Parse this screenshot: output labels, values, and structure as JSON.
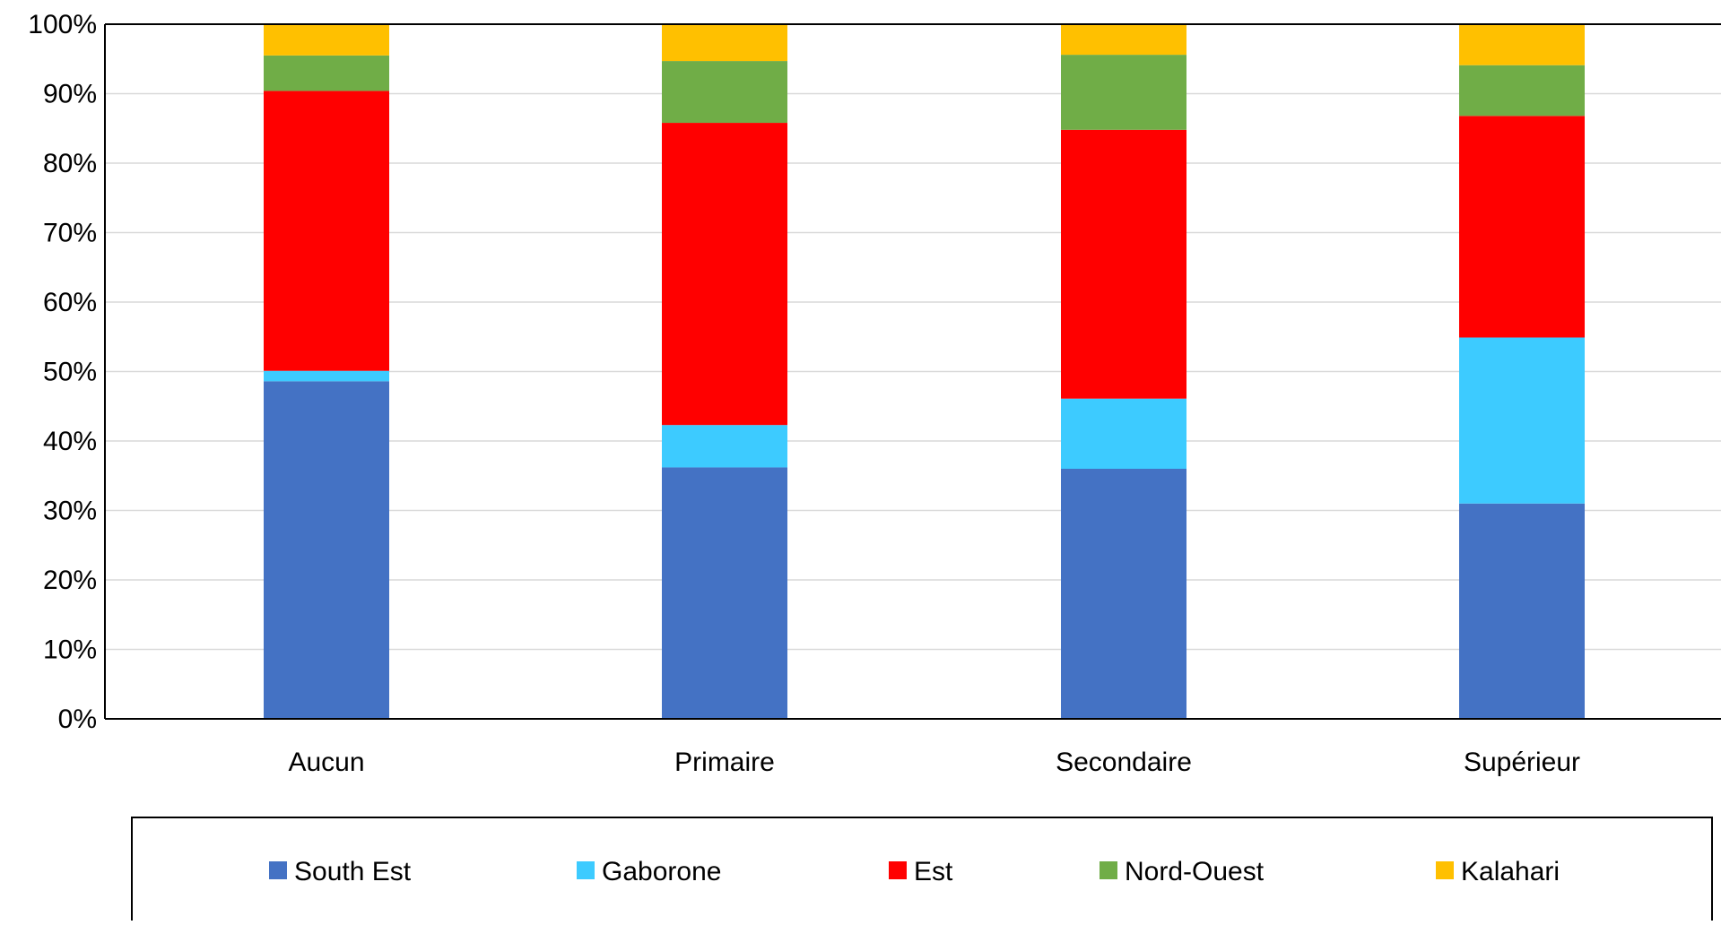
{
  "chart_data": {
    "type": "bar",
    "stacked": true,
    "categories": [
      "Aucun",
      "Primaire",
      "Secondaire",
      "Supérieur"
    ],
    "series": [
      {
        "name": "South Est",
        "color": "#4472C4",
        "values": [
          48.6,
          36.2,
          36.0,
          31.0
        ]
      },
      {
        "name": "Gaborone",
        "color": "#3DCBFF",
        "values": [
          1.5,
          6.1,
          10.1,
          23.9
        ]
      },
      {
        "name": "Est",
        "color": "#FF0000",
        "values": [
          40.3,
          43.5,
          38.7,
          31.9
        ]
      },
      {
        "name": "Nord-Ouest",
        "color": "#70AD47",
        "values": [
          5.1,
          8.9,
          10.8,
          7.3
        ]
      },
      {
        "name": "Kalahari",
        "color": "#FFC000",
        "values": [
          4.5,
          5.3,
          4.4,
          5.9
        ]
      }
    ],
    "yticks": [
      "0%",
      "10%",
      "20%",
      "30%",
      "40%",
      "50%",
      "60%",
      "70%",
      "80%",
      "90%",
      "100%"
    ],
    "ylim": [
      0,
      100
    ],
    "grid": true,
    "legend_position": "bottom"
  }
}
